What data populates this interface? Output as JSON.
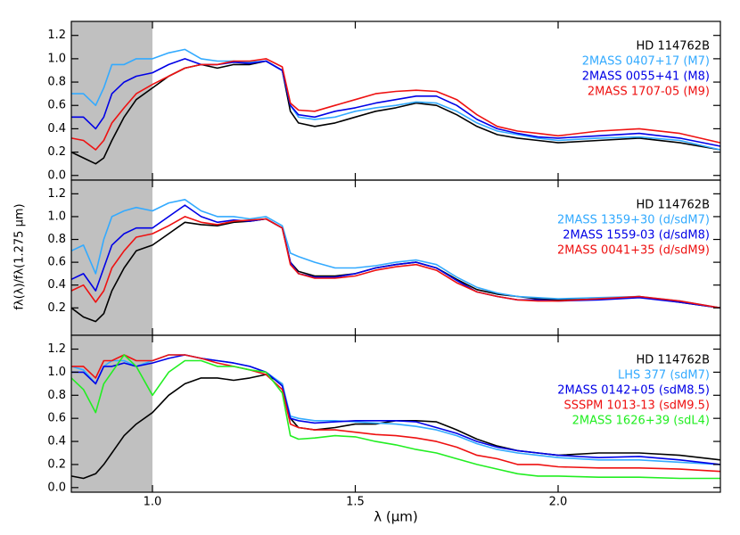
{
  "chart_data": [
    {
      "type": "line",
      "xlim": [
        0.8,
        2.4
      ],
      "ylim": [
        -0.04,
        1.32
      ],
      "yticks": [
        {
          "value": 0,
          "label": "0.0"
        },
        0.2,
        0.4,
        0.6,
        0.8,
        {
          "value": 1,
          "label": "1.0"
        },
        1.2
      ],
      "shade": {
        "x": [
          0.8,
          1.0
        ],
        "color": "#c0c0c0"
      },
      "x": [
        0.8,
        0.83,
        0.86,
        0.88,
        0.9,
        0.93,
        0.96,
        1.0,
        1.04,
        1.08,
        1.12,
        1.16,
        1.2,
        1.24,
        1.28,
        1.32,
        1.34,
        1.36,
        1.4,
        1.45,
        1.5,
        1.55,
        1.6,
        1.65,
        1.7,
        1.75,
        1.8,
        1.85,
        1.9,
        1.95,
        2.0,
        2.1,
        2.2,
        2.3,
        2.4
      ],
      "series": [
        {
          "name": "HD 114762B",
          "color": "#000000",
          "values": [
            0.2,
            0.15,
            0.1,
            0.15,
            0.3,
            0.5,
            0.65,
            0.75,
            0.85,
            0.92,
            0.95,
            0.92,
            0.95,
            0.95,
            0.98,
            0.9,
            0.55,
            0.45,
            0.42,
            0.45,
            0.5,
            0.55,
            0.58,
            0.62,
            0.6,
            0.52,
            0.42,
            0.35,
            0.32,
            0.3,
            0.28,
            0.3,
            0.32,
            0.28,
            0.22
          ]
        },
        {
          "name": "2MASS 0407+17 (M7)",
          "color": "#33aaff",
          "values": [
            0.7,
            0.7,
            0.6,
            0.75,
            0.95,
            0.95,
            1.0,
            1.0,
            1.05,
            1.08,
            1.0,
            0.98,
            0.98,
            0.97,
            0.98,
            0.9,
            0.6,
            0.5,
            0.48,
            0.5,
            0.55,
            0.58,
            0.6,
            0.63,
            0.62,
            0.55,
            0.45,
            0.38,
            0.35,
            0.32,
            0.3,
            0.32,
            0.33,
            0.3,
            0.22
          ]
        },
        {
          "name": "2MASS 0055+41 (M8)",
          "color": "#0000e6",
          "values": [
            0.5,
            0.5,
            0.4,
            0.5,
            0.7,
            0.8,
            0.85,
            0.88,
            0.95,
            1.0,
            0.95,
            0.95,
            0.97,
            0.96,
            0.98,
            0.9,
            0.6,
            0.52,
            0.5,
            0.55,
            0.58,
            0.62,
            0.65,
            0.68,
            0.68,
            0.6,
            0.48,
            0.4,
            0.36,
            0.33,
            0.32,
            0.34,
            0.36,
            0.32,
            0.25
          ]
        },
        {
          "name": "2MASS 1707-05 (M9)",
          "color": "#ee1111",
          "values": [
            0.32,
            0.3,
            0.22,
            0.3,
            0.45,
            0.58,
            0.7,
            0.78,
            0.85,
            0.92,
            0.95,
            0.95,
            0.98,
            0.98,
            1.0,
            0.93,
            0.62,
            0.56,
            0.55,
            0.6,
            0.65,
            0.7,
            0.72,
            0.73,
            0.72,
            0.65,
            0.52,
            0.42,
            0.38,
            0.36,
            0.34,
            0.38,
            0.4,
            0.36,
            0.28
          ]
        }
      ]
    },
    {
      "type": "line",
      "xlim": [
        0.8,
        2.4
      ],
      "ylim": [
        -0.04,
        1.32
      ],
      "yticks": [
        0.2,
        0.4,
        0.6,
        0.8,
        {
          "value": 1,
          "label": "1.0"
        },
        1.2
      ],
      "shade": {
        "x": [
          0.8,
          1.0
        ],
        "color": "#c0c0c0"
      },
      "x": [
        0.8,
        0.83,
        0.86,
        0.88,
        0.9,
        0.93,
        0.96,
        1.0,
        1.04,
        1.08,
        1.12,
        1.16,
        1.2,
        1.24,
        1.28,
        1.32,
        1.34,
        1.36,
        1.4,
        1.45,
        1.5,
        1.55,
        1.6,
        1.65,
        1.7,
        1.75,
        1.8,
        1.85,
        1.9,
        1.95,
        2.0,
        2.1,
        2.2,
        2.3,
        2.4
      ],
      "series": [
        {
          "name": "HD 114762B",
          "color": "#000000",
          "values": [
            0.2,
            0.12,
            0.08,
            0.15,
            0.35,
            0.55,
            0.7,
            0.75,
            0.85,
            0.95,
            0.93,
            0.92,
            0.95,
            0.96,
            0.98,
            0.9,
            0.6,
            0.52,
            0.48,
            0.48,
            0.5,
            0.55,
            0.58,
            0.6,
            0.55,
            0.45,
            0.36,
            0.32,
            0.3,
            0.28,
            0.27,
            0.28,
            0.3,
            0.25,
            0.2
          ]
        },
        {
          "name": "2MASS 1359+30 (d/sdM7)",
          "color": "#33aaff",
          "values": [
            0.7,
            0.75,
            0.5,
            0.8,
            1.0,
            1.05,
            1.08,
            1.05,
            1.12,
            1.15,
            1.05,
            1.0,
            1.0,
            0.98,
            1.0,
            0.92,
            0.68,
            0.65,
            0.6,
            0.55,
            0.55,
            0.57,
            0.6,
            0.62,
            0.58,
            0.47,
            0.38,
            0.33,
            0.3,
            0.29,
            0.28,
            0.29,
            0.3,
            0.26,
            0.2
          ]
        },
        {
          "name": "2MASS 1559-03 (d/sdM8)",
          "color": "#0000e6",
          "values": [
            0.45,
            0.5,
            0.35,
            0.55,
            0.75,
            0.85,
            0.9,
            0.9,
            1.0,
            1.1,
            1.0,
            0.95,
            0.97,
            0.96,
            0.98,
            0.9,
            0.6,
            0.5,
            0.47,
            0.47,
            0.5,
            0.55,
            0.58,
            0.6,
            0.55,
            0.44,
            0.34,
            0.3,
            0.27,
            0.27,
            0.26,
            0.27,
            0.29,
            0.25,
            0.2
          ]
        },
        {
          "name": "2MASS 0041+35 (d/sdM9)",
          "color": "#ee1111",
          "values": [
            0.35,
            0.4,
            0.25,
            0.35,
            0.55,
            0.7,
            0.82,
            0.85,
            0.92,
            1.0,
            0.95,
            0.93,
            0.96,
            0.97,
            0.98,
            0.9,
            0.58,
            0.5,
            0.46,
            0.46,
            0.48,
            0.53,
            0.56,
            0.58,
            0.53,
            0.42,
            0.34,
            0.3,
            0.27,
            0.26,
            0.26,
            0.28,
            0.3,
            0.26,
            0.2
          ]
        }
      ]
    },
    {
      "type": "line",
      "xlim": [
        0.8,
        2.4
      ],
      "ylim": [
        -0.04,
        1.32
      ],
      "yticks": [
        {
          "value": 0,
          "label": "0.0"
        },
        0.2,
        0.4,
        0.6,
        0.8,
        {
          "value": 1,
          "label": "1.0"
        },
        1.2
      ],
      "xticks": [
        {
          "value": 1,
          "label": "1.0"
        },
        1.5,
        {
          "value": 2,
          "label": "2.0"
        }
      ],
      "xlabel": "λ (μm)",
      "ylabel": "fλ(λ)/fλ(1.275 μm)",
      "shade": {
        "x": [
          0.8,
          1.0
        ],
        "color": "#c0c0c0"
      },
      "x": [
        0.8,
        0.83,
        0.86,
        0.88,
        0.9,
        0.93,
        0.96,
        1.0,
        1.04,
        1.08,
        1.12,
        1.16,
        1.2,
        1.24,
        1.28,
        1.32,
        1.34,
        1.36,
        1.4,
        1.45,
        1.5,
        1.55,
        1.6,
        1.65,
        1.7,
        1.75,
        1.8,
        1.85,
        1.9,
        1.95,
        2.0,
        2.1,
        2.2,
        2.3,
        2.4
      ],
      "series": [
        {
          "name": "HD 114762B",
          "color": "#000000",
          "values": [
            0.1,
            0.08,
            0.12,
            0.2,
            0.3,
            0.45,
            0.55,
            0.65,
            0.8,
            0.9,
            0.95,
            0.95,
            0.93,
            0.95,
            0.98,
            0.9,
            0.6,
            0.52,
            0.5,
            0.52,
            0.55,
            0.55,
            0.58,
            0.58,
            0.57,
            0.5,
            0.42,
            0.36,
            0.32,
            0.3,
            0.28,
            0.3,
            0.3,
            0.28,
            0.24
          ]
        },
        {
          "name": "LHS 377 (sdM7)",
          "color": "#33aaff",
          "values": [
            1.05,
            1.02,
            0.9,
            1.05,
            1.1,
            1.1,
            1.05,
            1.1,
            1.15,
            1.15,
            1.12,
            1.1,
            1.08,
            1.05,
            1.0,
            0.9,
            0.62,
            0.6,
            0.58,
            0.58,
            0.57,
            0.56,
            0.55,
            0.53,
            0.5,
            0.45,
            0.38,
            0.33,
            0.3,
            0.28,
            0.26,
            0.24,
            0.24,
            0.22,
            0.2
          ]
        },
        {
          "name": "2MASS 0142+05 (sdM8.5)",
          "color": "#0000e6",
          "values": [
            1.0,
            1.0,
            0.9,
            1.05,
            1.05,
            1.08,
            1.05,
            1.08,
            1.12,
            1.15,
            1.12,
            1.1,
            1.08,
            1.05,
            1.0,
            0.88,
            0.6,
            0.58,
            0.56,
            0.57,
            0.58,
            0.58,
            0.58,
            0.57,
            0.52,
            0.47,
            0.4,
            0.35,
            0.32,
            0.3,
            0.28,
            0.26,
            0.27,
            0.24,
            0.2
          ]
        },
        {
          "name": "SSSPM 1013-13 (sdM9.5)",
          "color": "#ee1111",
          "values": [
            1.05,
            1.05,
            0.95,
            1.1,
            1.1,
            1.15,
            1.1,
            1.1,
            1.15,
            1.15,
            1.12,
            1.08,
            1.05,
            1.02,
            0.98,
            0.85,
            0.55,
            0.52,
            0.5,
            0.5,
            0.48,
            0.46,
            0.45,
            0.43,
            0.4,
            0.35,
            0.28,
            0.25,
            0.2,
            0.2,
            0.18,
            0.17,
            0.17,
            0.16,
            0.14
          ]
        },
        {
          "name": "2MASS 1626+39 (sdL4)",
          "color": "#22ee22",
          "values": [
            0.95,
            0.85,
            0.65,
            0.9,
            1.0,
            1.15,
            1.05,
            0.8,
            1.0,
            1.1,
            1.1,
            1.05,
            1.05,
            1.02,
            1.0,
            0.82,
            0.45,
            0.42,
            0.43,
            0.45,
            0.44,
            0.4,
            0.37,
            0.33,
            0.3,
            0.25,
            0.2,
            0.16,
            0.12,
            0.1,
            0.1,
            0.09,
            0.09,
            0.08,
            0.08
          ]
        }
      ]
    }
  ]
}
